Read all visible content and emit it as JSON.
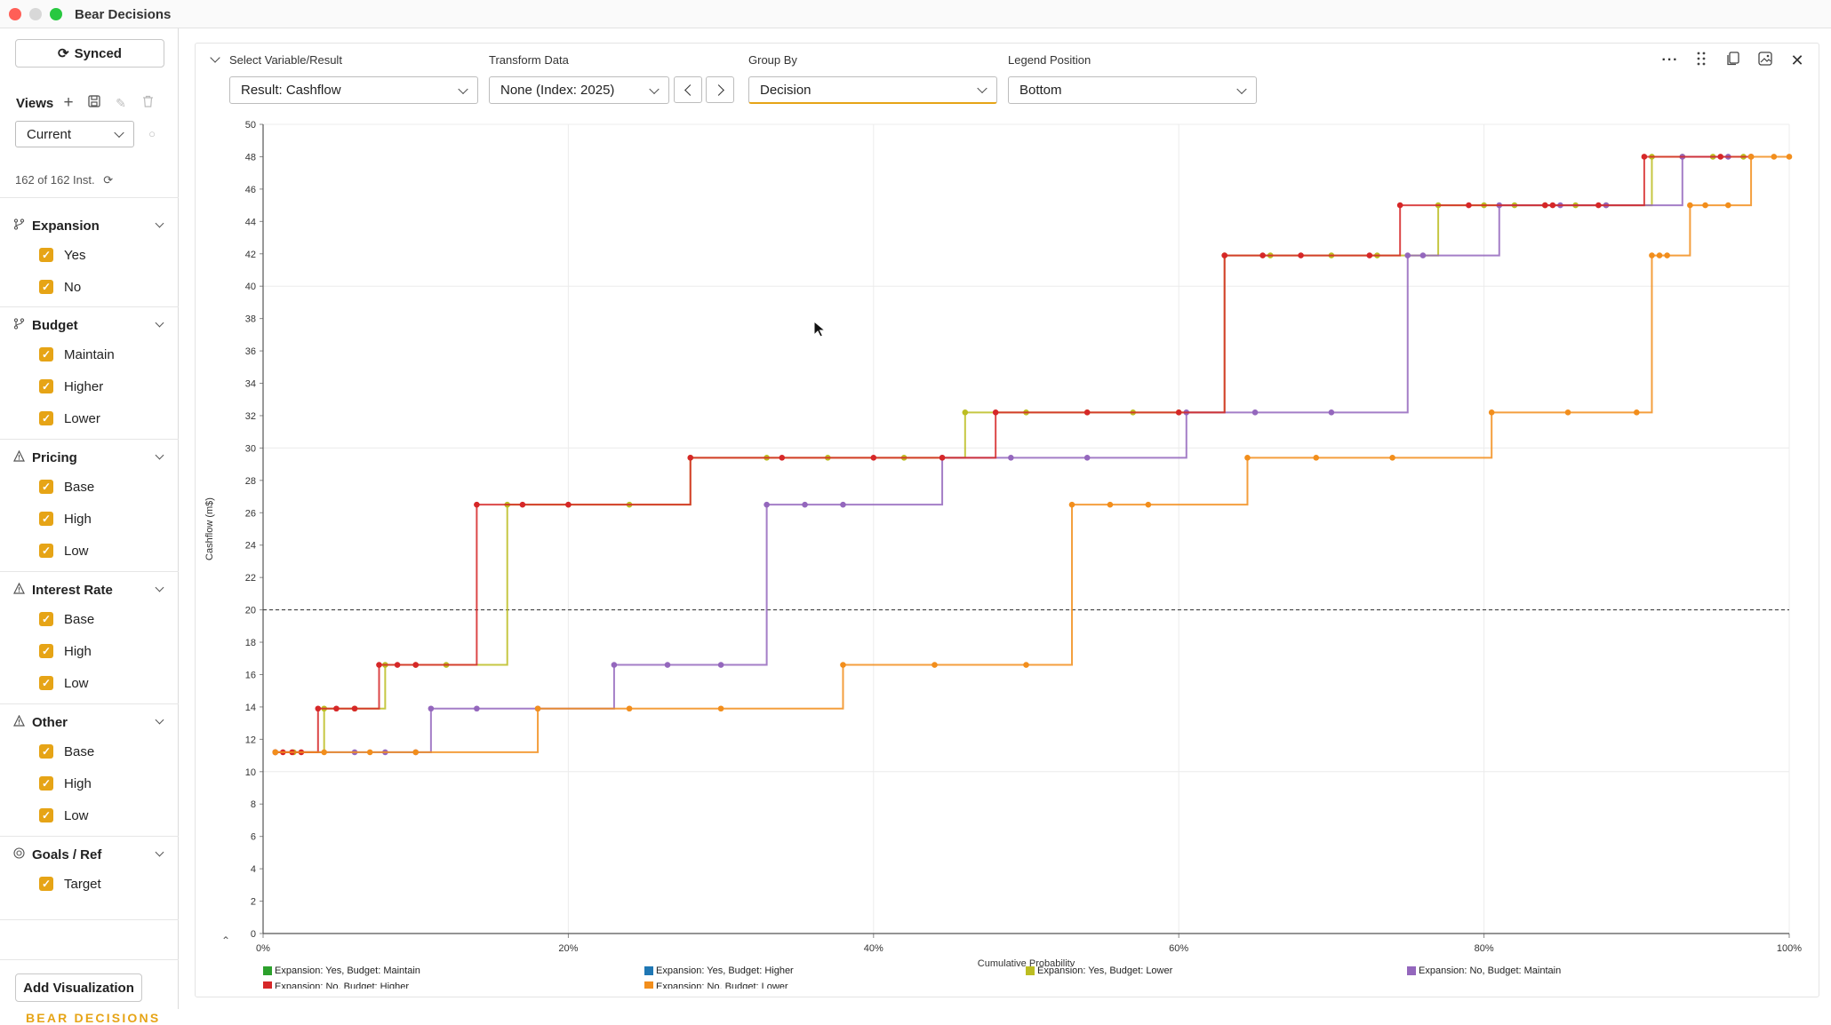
{
  "window": {
    "title": "Bear Decisions"
  },
  "sidebar": {
    "sync_label": "Synced",
    "views_label": "Views",
    "view_select": "Current",
    "instances": "162 of 162 Inst.",
    "groups": [
      {
        "name": "Expansion",
        "icon": "branch-icon",
        "items": [
          "Yes",
          "No"
        ]
      },
      {
        "name": "Budget",
        "icon": "branch-icon",
        "items": [
          "Maintain",
          "Higher",
          "Lower"
        ]
      },
      {
        "name": "Pricing",
        "icon": "warning-icon",
        "items": [
          "Base",
          "High",
          "Low"
        ]
      },
      {
        "name": "Interest Rate",
        "icon": "warning-icon",
        "items": [
          "Base",
          "High",
          "Low"
        ]
      },
      {
        "name": "Other",
        "icon": "warning-icon",
        "items": [
          "Base",
          "High",
          "Low"
        ]
      },
      {
        "name": "Goals / Ref",
        "icon": "target-icon",
        "items": [
          "Target"
        ]
      }
    ],
    "add_visualization": "Add Visualization",
    "logo": "BEAR DECISIONS"
  },
  "controls": {
    "variable_label": "Select Variable/Result",
    "variable_value": "Result: Cashflow",
    "transform_label": "Transform Data",
    "transform_value": "None (Index: 2025)",
    "group_label": "Group By",
    "group_value": "Decision",
    "legend_label": "Legend Position",
    "legend_value": "Bottom"
  },
  "colors": {
    "accent": "#e6a416"
  },
  "chart_data": {
    "type": "line",
    "step": true,
    "xlabel": "Cumulative Probability",
    "ylabel": "Cashflow (m$)",
    "xlim": [
      0,
      1
    ],
    "ylim": [
      0,
      50
    ],
    "xticks": [
      "0%",
      "20%",
      "40%",
      "60%",
      "80%",
      "100%"
    ],
    "yticks": [
      0,
      2,
      4,
      6,
      8,
      10,
      12,
      14,
      16,
      18,
      20,
      22,
      24,
      26,
      28,
      30,
      32,
      34,
      36,
      38,
      40,
      42,
      44,
      46,
      48,
      50
    ],
    "grid": true,
    "reference_line": {
      "name": "Target",
      "y": 20
    },
    "legend_position": "bottom",
    "series": [
      {
        "name": "Expansion: Yes, Budget: Maintain",
        "color": "#2ca02c",
        "points": []
      },
      {
        "name": "Expansion: Yes, Budget: Higher",
        "color": "#1f77b4",
        "points": []
      },
      {
        "name": "Expansion: Yes, Budget: Lower",
        "color": "#bcbd22",
        "points": [
          [
            0.008,
            11.2
          ],
          [
            0.02,
            11.2
          ],
          [
            0.04,
            13.9
          ],
          [
            0.06,
            13.9
          ],
          [
            0.08,
            16.6
          ],
          [
            0.1,
            16.6
          ],
          [
            0.12,
            16.6
          ],
          [
            0.16,
            26.5
          ],
          [
            0.2,
            26.5
          ],
          [
            0.24,
            26.5
          ],
          [
            0.28,
            29.4
          ],
          [
            0.33,
            29.4
          ],
          [
            0.37,
            29.4
          ],
          [
            0.42,
            29.4
          ],
          [
            0.46,
            32.2
          ],
          [
            0.5,
            32.2
          ],
          [
            0.54,
            32.2
          ],
          [
            0.57,
            32.2
          ],
          [
            0.6,
            32.2
          ],
          [
            0.63,
            41.9
          ],
          [
            0.66,
            41.9
          ],
          [
            0.7,
            41.9
          ],
          [
            0.73,
            41.9
          ],
          [
            0.77,
            45
          ],
          [
            0.8,
            45
          ],
          [
            0.82,
            45
          ],
          [
            0.84,
            45
          ],
          [
            0.86,
            45
          ],
          [
            0.88,
            45
          ],
          [
            0.91,
            48
          ],
          [
            0.93,
            48
          ],
          [
            0.95,
            48
          ],
          [
            0.97,
            48
          ]
        ]
      },
      {
        "name": "Expansion: No, Budget: Maintain",
        "color": "#9467bd",
        "points": [
          [
            0.008,
            11.2
          ],
          [
            0.06,
            11.2
          ],
          [
            0.08,
            11.2
          ],
          [
            0.1,
            11.2
          ],
          [
            0.11,
            13.9
          ],
          [
            0.14,
            13.9
          ],
          [
            0.18,
            13.9
          ],
          [
            0.23,
            16.6
          ],
          [
            0.265,
            16.6
          ],
          [
            0.3,
            16.6
          ],
          [
            0.33,
            26.5
          ],
          [
            0.355,
            26.5
          ],
          [
            0.38,
            26.5
          ],
          [
            0.445,
            29.4
          ],
          [
            0.49,
            29.4
          ],
          [
            0.54,
            29.4
          ],
          [
            0.605,
            32.2
          ],
          [
            0.65,
            32.2
          ],
          [
            0.7,
            32.2
          ],
          [
            0.75,
            41.9
          ],
          [
            0.76,
            41.9
          ],
          [
            0.81,
            45
          ],
          [
            0.85,
            45
          ],
          [
            0.88,
            45
          ],
          [
            0.93,
            48
          ],
          [
            0.96,
            48
          ]
        ]
      },
      {
        "name": "Expansion: No, Budget: Higher",
        "color": "#d62728",
        "points": [
          [
            0.008,
            11.2
          ],
          [
            0.013,
            11.2
          ],
          [
            0.019,
            11.2
          ],
          [
            0.025,
            11.2
          ],
          [
            0.036,
            13.9
          ],
          [
            0.048,
            13.9
          ],
          [
            0.06,
            13.9
          ],
          [
            0.076,
            16.6
          ],
          [
            0.088,
            16.6
          ],
          [
            0.1,
            16.6
          ],
          [
            0.14,
            26.5
          ],
          [
            0.17,
            26.5
          ],
          [
            0.2,
            26.5
          ],
          [
            0.28,
            29.4
          ],
          [
            0.34,
            29.4
          ],
          [
            0.4,
            29.4
          ],
          [
            0.445,
            29.4
          ],
          [
            0.48,
            32.2
          ],
          [
            0.54,
            32.2
          ],
          [
            0.6,
            32.2
          ],
          [
            0.63,
            41.9
          ],
          [
            0.655,
            41.9
          ],
          [
            0.68,
            41.9
          ],
          [
            0.725,
            41.9
          ],
          [
            0.745,
            45
          ],
          [
            0.79,
            45
          ],
          [
            0.84,
            45
          ],
          [
            0.845,
            45
          ],
          [
            0.875,
            45
          ],
          [
            0.905,
            48
          ],
          [
            0.955,
            48
          ],
          [
            0.975,
            48
          ]
        ]
      },
      {
        "name": "Expansion: No, Budget: Lower",
        "color": "#f28e1c",
        "points": [
          [
            0.008,
            11.2
          ],
          [
            0.04,
            11.2
          ],
          [
            0.07,
            11.2
          ],
          [
            0.1,
            11.2
          ],
          [
            0.18,
            13.9
          ],
          [
            0.24,
            13.9
          ],
          [
            0.3,
            13.9
          ],
          [
            0.38,
            16.6
          ],
          [
            0.44,
            16.6
          ],
          [
            0.5,
            16.6
          ],
          [
            0.53,
            26.5
          ],
          [
            0.555,
            26.5
          ],
          [
            0.58,
            26.5
          ],
          [
            0.645,
            29.4
          ],
          [
            0.69,
            29.4
          ],
          [
            0.74,
            29.4
          ],
          [
            0.805,
            32.2
          ],
          [
            0.855,
            32.2
          ],
          [
            0.9,
            32.2
          ],
          [
            0.91,
            41.9
          ],
          [
            0.915,
            41.9
          ],
          [
            0.92,
            41.9
          ],
          [
            0.935,
            45
          ],
          [
            0.945,
            45
          ],
          [
            0.96,
            45
          ],
          [
            0.975,
            48
          ],
          [
            0.99,
            48
          ],
          [
            1.0,
            48
          ]
        ]
      }
    ]
  }
}
